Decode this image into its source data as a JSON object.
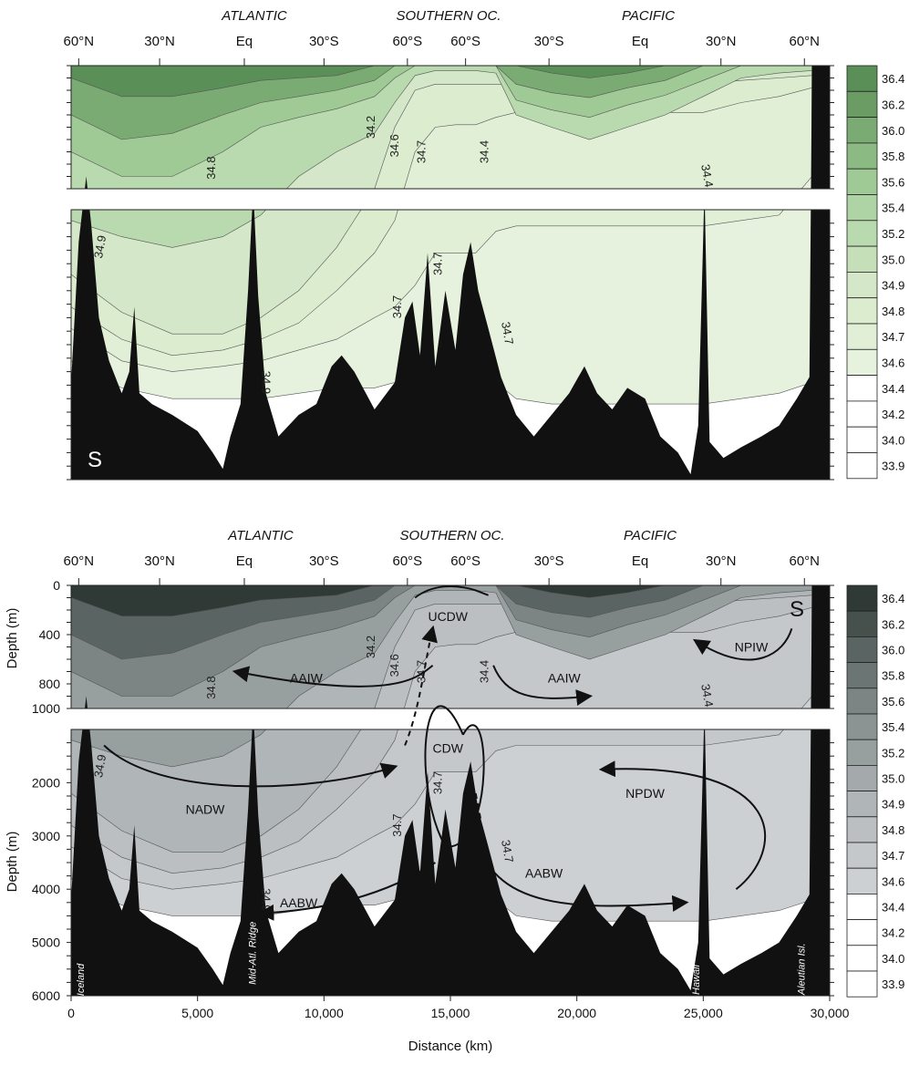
{
  "chart_data": [
    {
      "type": "heatmap",
      "variant": "color",
      "ocean_headers": [
        "ATLANTIC",
        "SOUTHERN OC.",
        "PACIFIC"
      ],
      "latitude_ticks": [
        "60°N",
        "30°N",
        "Eq",
        "30°S",
        "60°S",
        "60°S",
        "30°S",
        "Eq",
        "30°N",
        "60°N"
      ],
      "panel_label": "S",
      "colorbar_levels": [
        "36.4",
        "36.2",
        "36.0",
        "35.8",
        "35.6",
        "35.4",
        "35.2",
        "35.0",
        "34.9",
        "34.8",
        "34.7",
        "34.6",
        "34.4",
        "34.2",
        "34.0",
        "33.9"
      ],
      "colors": [
        "#5b8f58",
        "#6a9c64",
        "#7aab72",
        "#8bbb82",
        "#9fca95",
        "#aed3a4",
        "#b9d9ae",
        "#c5dfb9",
        "#d4e7c9",
        "#dceccf",
        "#e1efd6",
        "#e6f2dd",
        "#ffffff",
        "#ffffff",
        "#ffffff",
        "#ffffff"
      ],
      "contour_labels": [
        "34.2",
        "34.8",
        "34.6",
        "34.7",
        "34.4",
        "34.4",
        "34.9",
        "34.7",
        "34.7",
        "34.7",
        "34.9"
      ]
    },
    {
      "type": "heatmap",
      "variant": "grayscale",
      "ocean_headers": [
        "ATLANTIC",
        "SOUTHERN OC.",
        "PACIFIC"
      ],
      "latitude_ticks": [
        "60°N",
        "30°N",
        "Eq",
        "30°S",
        "60°S",
        "60°S",
        "30°S",
        "Eq",
        "30°N",
        "60°N"
      ],
      "panel_label": "S",
      "xlabel": "Distance (km)",
      "ylabel": "Depth (m)",
      "xlim": [
        0,
        30000
      ],
      "ylim": [
        6000,
        0
      ],
      "x_ticks": [
        "0",
        "5,000",
        "10,000",
        "15,000",
        "20,000",
        "25,000",
        "30,000"
      ],
      "y_ticks_upper": [
        "0",
        "400",
        "800"
      ],
      "y_ticks_lower": [
        "1000",
        "2000",
        "3000",
        "4000",
        "5000",
        "6000"
      ],
      "colorbar_levels": [
        "36.4",
        "36.2",
        "36.0",
        "35.8",
        "35.6",
        "35.4",
        "35.2",
        "35.0",
        "34.9",
        "34.8",
        "34.7",
        "34.6",
        "34.4",
        "34.2",
        "34.0",
        "33.9"
      ],
      "colors": [
        "#2f3a36",
        "#46504d",
        "#5a6462",
        "#6b7573",
        "#7c8584",
        "#8b9393",
        "#989f9f",
        "#a4aaab",
        "#b0b5b7",
        "#bbbfc1",
        "#c4c8ca",
        "#cdd0d2",
        "#ffffff",
        "#ffffff",
        "#ffffff",
        "#ffffff"
      ],
      "water_masses": [
        "UCDW",
        "AAIW",
        "AAIW",
        "NPIW",
        "CDW",
        "NADW",
        "NPDW",
        "AABW",
        "AABW"
      ],
      "topography_labels": [
        "Iceland",
        "Mid-Atl. Ridge",
        "Hawaii",
        "Aleutian Isl."
      ],
      "contour_labels": [
        "34.2",
        "34.8",
        "34.6",
        "34.7",
        "34.4",
        "34.4",
        "34.9",
        "34.7",
        "34.7",
        "34.7",
        "34.9"
      ]
    }
  ]
}
